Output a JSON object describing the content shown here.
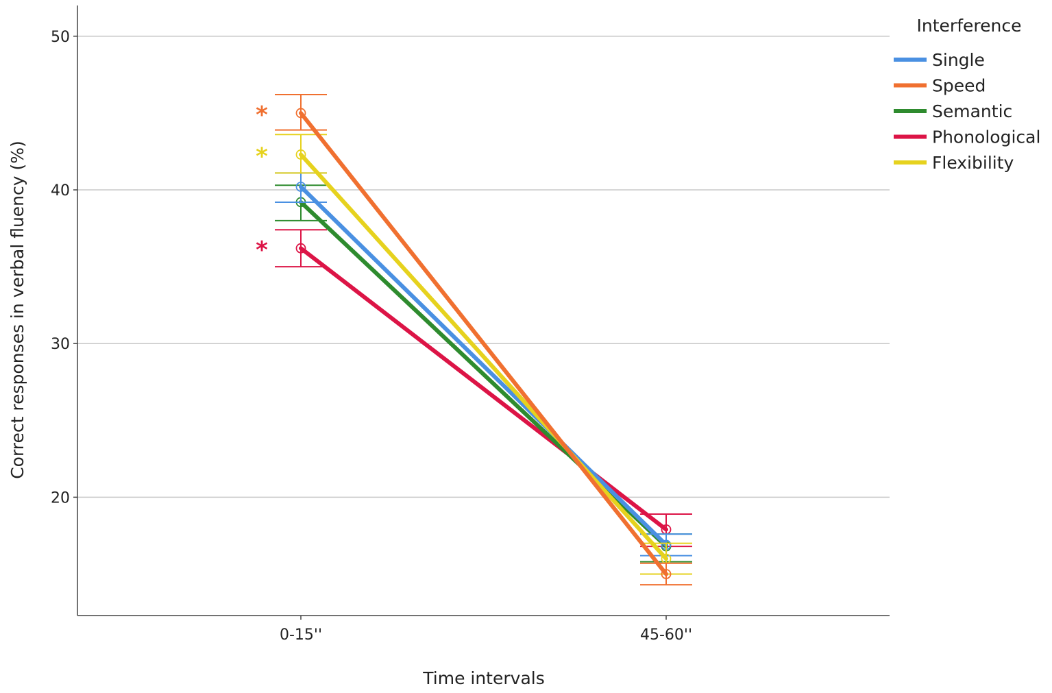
{
  "chart_data": {
    "type": "line",
    "xlabel": "Time intervals",
    "ylabel": "Correct responses in verbal fluency (%)",
    "categories": [
      "0-15''",
      "45-60''"
    ],
    "ylim": [
      12.3,
      52
    ],
    "yticks": [
      20,
      30,
      40,
      50
    ],
    "ytick_labels": [
      "20",
      "30",
      "40",
      "50"
    ],
    "grid": true,
    "legend": {
      "title": "Interference",
      "position": "top-right"
    },
    "error_bars": true,
    "series": [
      {
        "name": "Single",
        "color": "#4a90e2",
        "values": [
          40.2,
          16.9
        ],
        "err_low": [
          39.2,
          16.2
        ],
        "err_high": [
          41.1,
          17.6
        ],
        "marker": ""
      },
      {
        "name": "Speed",
        "color": "#f07030",
        "values": [
          45.0,
          15.0
        ],
        "err_low": [
          43.9,
          14.3
        ],
        "err_high": [
          46.2,
          15.7
        ],
        "marker": "*"
      },
      {
        "name": "Semantic",
        "color": "#2e8b2e",
        "values": [
          39.2,
          16.8
        ],
        "err_low": [
          38.0,
          15.8
        ],
        "err_high": [
          40.3,
          17.6
        ],
        "marker": ""
      },
      {
        "name": "Phonological",
        "color": "#dc1446",
        "values": [
          36.2,
          17.9
        ],
        "err_low": [
          35.0,
          16.8
        ],
        "err_high": [
          37.4,
          18.9
        ],
        "marker": "*"
      },
      {
        "name": "Flexibility",
        "color": "#e6d21e",
        "values": [
          42.3,
          16.0
        ],
        "err_low": [
          41.1,
          15.0
        ],
        "err_high": [
          43.6,
          17.0
        ],
        "marker": "*"
      }
    ]
  }
}
